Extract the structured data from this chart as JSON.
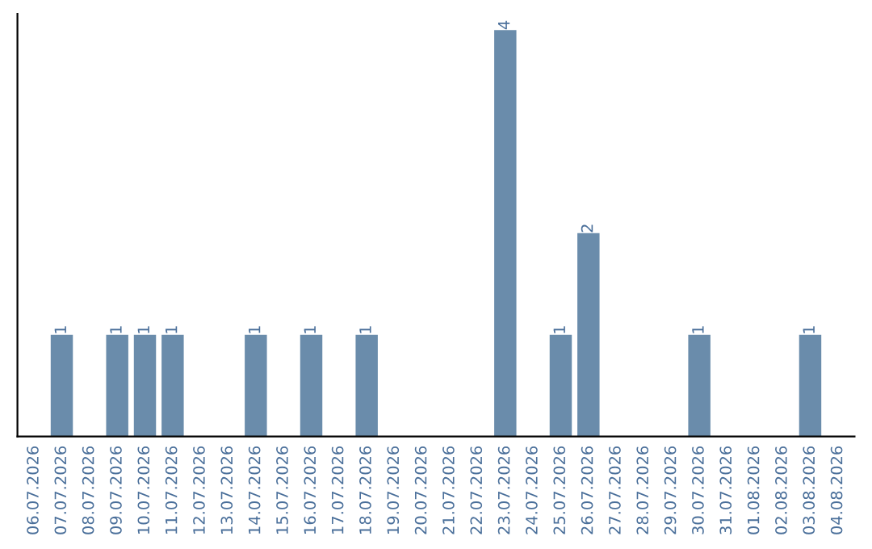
{
  "chart_data": {
    "type": "bar",
    "categories": [
      "06.07.2026",
      "07.07.2026",
      "08.07.2026",
      "09.07.2026",
      "10.07.2026",
      "11.07.2026",
      "12.07.2026",
      "13.07.2026",
      "14.07.2026",
      "15.07.2026",
      "16.07.2026",
      "17.07.2026",
      "18.07.2026",
      "19.07.2026",
      "20.07.2026",
      "21.07.2026",
      "22.07.2026",
      "23.07.2026",
      "24.07.2026",
      "25.07.2026",
      "26.07.2026",
      "27.07.2026",
      "28.07.2026",
      "29.07.2026",
      "30.07.2026",
      "31.07.2026",
      "01.08.2026",
      "02.08.2026",
      "03.08.2026",
      "04.08.2026"
    ],
    "values": [
      0,
      1,
      0,
      1,
      1,
      1,
      0,
      0,
      1,
      0,
      1,
      0,
      1,
      0,
      0,
      0,
      0,
      4,
      0,
      1,
      2,
      0,
      0,
      0,
      1,
      0,
      0,
      0,
      1,
      0
    ],
    "value_labels": [
      null,
      "1",
      null,
      "1",
      "1",
      "1",
      null,
      null,
      "1",
      null,
      "1",
      null,
      "1",
      null,
      null,
      null,
      null,
      "4",
      null,
      "1",
      "2",
      null,
      null,
      null,
      "1",
      null,
      null,
      null,
      "1",
      null
    ],
    "color": "#6a8cab",
    "grid": false,
    "legend": false
  }
}
